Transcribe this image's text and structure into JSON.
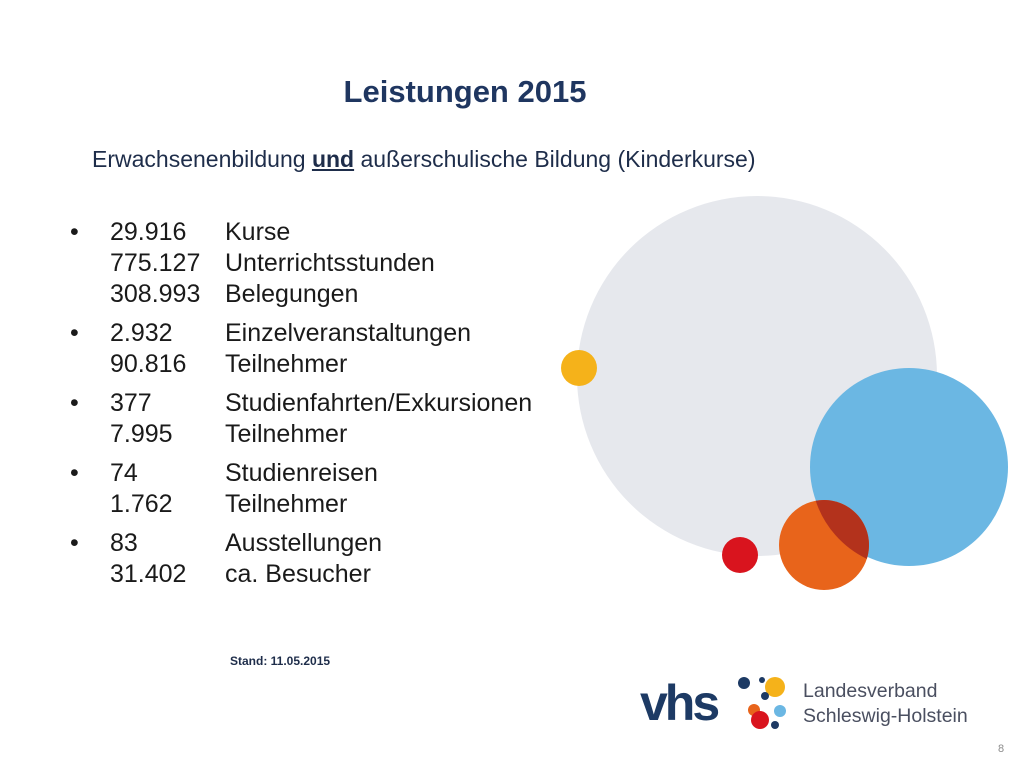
{
  "slide": {
    "title": "Leistungen 2015",
    "subtitle": {
      "before": "Erwachsenenbildung ",
      "emphasis": "und",
      "after": " außerschulische Bildung (Kinderkurse)"
    },
    "bullet_symbol": "•",
    "groups": [
      {
        "rows": [
          {
            "value": "29.916",
            "label": "Kurse"
          },
          {
            "value": "775.127",
            "label": "Unterrichtsstunden"
          },
          {
            "value": "308.993",
            "label": "Belegungen"
          }
        ]
      },
      {
        "rows": [
          {
            "value": "2.932",
            "label": "Einzelveranstaltungen"
          },
          {
            "value": "90.816",
            "label": "Teilnehmer"
          }
        ]
      },
      {
        "rows": [
          {
            "value": "377",
            "label": "Studienfahrten/Exkursionen"
          },
          {
            "value": "7.995",
            "label": "Teilnehmer"
          }
        ]
      },
      {
        "rows": [
          {
            "value": "74",
            "label": "Studienreisen"
          },
          {
            "value": "1.762",
            "label": "Teilnehmer"
          }
        ]
      },
      {
        "rows": [
          {
            "value": "83",
            "label": "Ausstellungen"
          },
          {
            "value": "31.402",
            "label": "ca. Besucher"
          }
        ]
      }
    ],
    "stand": "Stand: 11.05.2015",
    "page_number": "8"
  },
  "logo": {
    "mark": "vhs",
    "line1": "Landesverband",
    "line2": "Schleswig-Holstein"
  },
  "colors": {
    "title": "#1f3660",
    "gray_circle": "#e6e8ed",
    "blue_circle": "#6bb7e3",
    "orange_circle": "#e8641b",
    "yellow_dot": "#f5b21a",
    "red_dot": "#d9141e",
    "logo_navy": "#1d3a64"
  }
}
